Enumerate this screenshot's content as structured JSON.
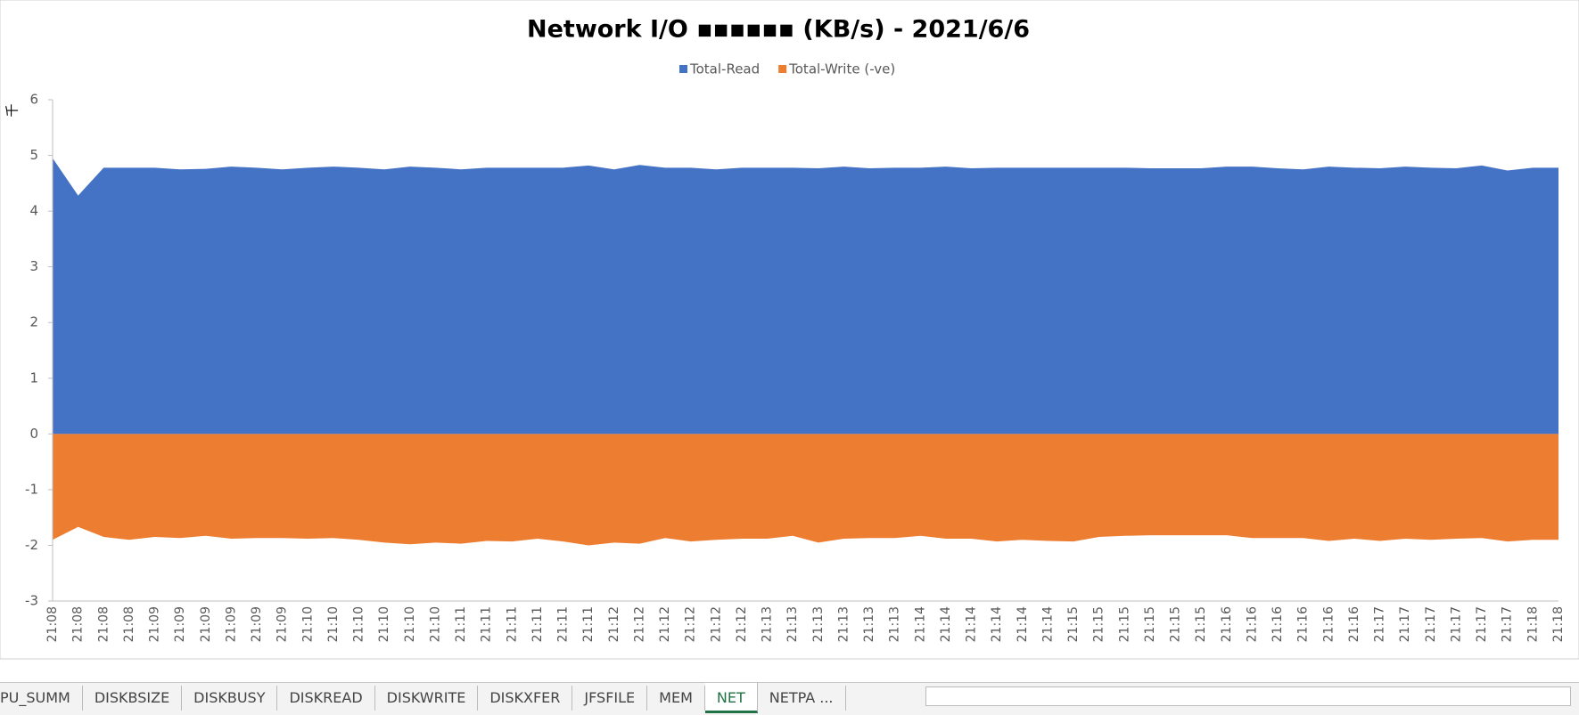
{
  "chart_data": {
    "type": "area",
    "title": "Network I/O ▪▪▪▪▪▪ (KB/s) - 2021/6/6",
    "y_unit": "千",
    "categories": [
      "21:08",
      "21:08",
      "21:08",
      "21:08",
      "21:09",
      "21:09",
      "21:09",
      "21:09",
      "21:09",
      "21:09",
      "21:10",
      "21:10",
      "21:10",
      "21:10",
      "21:10",
      "21:10",
      "21:11",
      "21:11",
      "21:11",
      "21:11",
      "21:11",
      "21:11",
      "21:12",
      "21:12",
      "21:12",
      "21:12",
      "21:12",
      "21:12",
      "21:13",
      "21:13",
      "21:13",
      "21:13",
      "21:13",
      "21:13",
      "21:14",
      "21:14",
      "21:14",
      "21:14",
      "21:14",
      "21:14",
      "21:15",
      "21:15",
      "21:15",
      "21:15",
      "21:15",
      "21:15",
      "21:16",
      "21:16",
      "21:16",
      "21:16",
      "21:16",
      "21:16",
      "21:17",
      "21:17",
      "21:17",
      "21:17",
      "21:17",
      "21:17",
      "21:18",
      "21:18"
    ],
    "series": [
      {
        "name": "Total-Read",
        "color": "#4472c4",
        "values": [
          4.95,
          4.28,
          4.78,
          4.78,
          4.78,
          4.75,
          4.76,
          4.8,
          4.78,
          4.75,
          4.78,
          4.8,
          4.78,
          4.75,
          4.8,
          4.78,
          4.75,
          4.78,
          4.78,
          4.78,
          4.78,
          4.82,
          4.75,
          4.83,
          4.78,
          4.78,
          4.75,
          4.78,
          4.78,
          4.78,
          4.77,
          4.8,
          4.77,
          4.78,
          4.78,
          4.8,
          4.77,
          4.78,
          4.78,
          4.78,
          4.78,
          4.78,
          4.78,
          4.77,
          4.77,
          4.77,
          4.8,
          4.8,
          4.77,
          4.75,
          4.8,
          4.78,
          4.77,
          4.8,
          4.78,
          4.77,
          4.82,
          4.73,
          4.78,
          4.78
        ]
      },
      {
        "name": "Total-Write (-ve)",
        "color": "#ed7d31",
        "values": [
          -1.9,
          -1.67,
          -1.85,
          -1.9,
          -1.85,
          -1.87,
          -1.83,
          -1.88,
          -1.87,
          -1.87,
          -1.88,
          -1.87,
          -1.9,
          -1.95,
          -1.98,
          -1.95,
          -1.97,
          -1.92,
          -1.93,
          -1.88,
          -1.93,
          -2.0,
          -1.95,
          -1.97,
          -1.87,
          -1.93,
          -1.9,
          -1.88,
          -1.88,
          -1.83,
          -1.95,
          -1.88,
          -1.87,
          -1.87,
          -1.83,
          -1.88,
          -1.88,
          -1.93,
          -1.9,
          -1.92,
          -1.93,
          -1.85,
          -1.83,
          -1.82,
          -1.82,
          -1.82,
          -1.82,
          -1.87,
          -1.87,
          -1.87,
          -1.92,
          -1.88,
          -1.92,
          -1.88,
          -1.9,
          -1.88,
          -1.87,
          -1.93,
          -1.9,
          -1.9
        ]
      }
    ],
    "ylim": [
      -3,
      6
    ],
    "yticks": [
      -3,
      -2,
      -1,
      0,
      1,
      2,
      3,
      4,
      5,
      6
    ],
    "legend": "top"
  },
  "sheet_tabs": {
    "tabs": [
      "PU_SUMM",
      "DISKBSIZE",
      "DISKBUSY",
      "DISKREAD",
      "DISKWRITE",
      "DISKXFER",
      "JFSFILE",
      "MEM",
      "NET",
      "NETPA ..."
    ],
    "active": "NET"
  }
}
